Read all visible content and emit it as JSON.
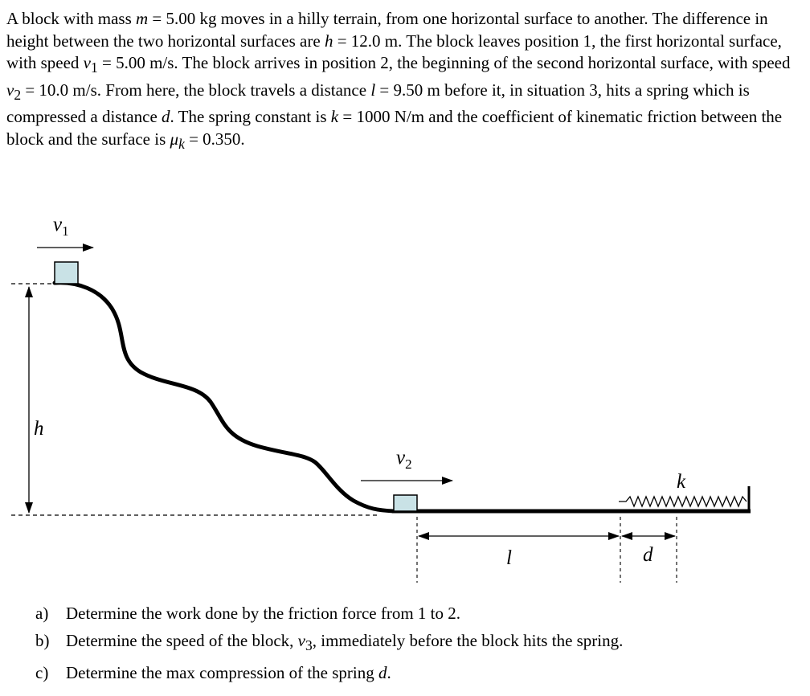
{
  "problem": {
    "s1": "A block with mass ",
    "m_sym": "m",
    "s2": " = 5.00 kg moves in a hilly terrain, from one horizontal surface to another. The difference in height between the two horizontal surfaces are ",
    "h_sym": "h",
    "s3": " = 12.0 m. The block leaves position 1, the first horizontal surface, with speed ",
    "v1_sym": "v",
    "v1_sub": "1",
    "s4": " = 5.00 m/s. The block arrives in position 2, the beginning of the second horizontal surface, with speed ",
    "v2_sym": "v",
    "v2_sub": "2",
    "s5": " = 10.0 m/s. From here, the block travels a distance ",
    "l_sym": "l",
    "s6": " = 9.50 m before it, in situation 3, hits a spring which is compressed a distance ",
    "d_sym": "d",
    "s7": ". The spring constant is ",
    "k_sym": "k",
    "s8": " = 1000 N/m and the coefficient of kinematic friction between the block and the surface is ",
    "mu_sym": "μ",
    "mu_sub": "k",
    "s9": " = 0.350."
  },
  "diagram": {
    "v1_label": "v",
    "v1_sub": "1",
    "v2_label": "v",
    "v2_sub": "2",
    "h_label": "h",
    "l_label": "l",
    "d_label": "d",
    "k_label": "k",
    "colors": {
      "block_fill": "#c9e2e6",
      "stroke": "#000000"
    }
  },
  "questions": [
    {
      "letter": "a)",
      "text": "Determine the work done by the friction force from 1 to 2."
    },
    {
      "letter": "b)",
      "text_pre": "Determine the speed of the block, ",
      "sym": "v",
      "sub": "3",
      "text_post": ", immediately before the block hits the spring."
    },
    {
      "letter": "c)",
      "text_pre": "Determine the max compression of the spring ",
      "sym": "d",
      "text_post": "."
    }
  ]
}
